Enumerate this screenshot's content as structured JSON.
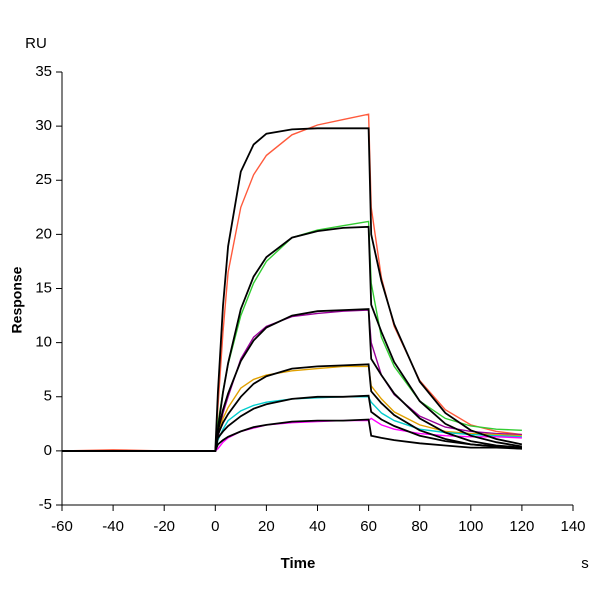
{
  "chart_data": {
    "type": "line",
    "y_unit": "RU",
    "ylabel": "Response",
    "xlabel": "Time",
    "x_unit": "s",
    "xlim": [
      -60,
      140
    ],
    "xticks": [
      -60,
      -40,
      -20,
      0,
      20,
      40,
      60,
      80,
      100,
      120,
      140
    ],
    "ylim": [
      -5,
      35
    ],
    "yticks": [
      -5,
      0,
      5,
      10,
      15,
      20,
      25,
      30,
      35
    ],
    "x": [
      -60,
      -40,
      -20,
      0,
      1,
      3,
      5,
      10,
      15,
      20,
      30,
      40,
      50,
      60,
      61,
      65,
      70,
      80,
      90,
      100,
      110,
      120
    ],
    "series": [
      {
        "color": "#ff5a3c",
        "values": [
          0,
          0.1,
          0,
          0,
          4,
          11,
          16.5,
          22.5,
          25.5,
          27.3,
          29.2,
          30.1,
          30.6,
          31.1,
          22.5,
          16,
          11.5,
          6.5,
          3.8,
          2.4,
          1.8,
          1.5
        ]
      },
      {
        "color": "#33cc33",
        "values": [
          0,
          0,
          0,
          0,
          2.5,
          5.5,
          8,
          12.5,
          15.5,
          17.5,
          19.7,
          20.4,
          20.8,
          21.2,
          15.5,
          10.5,
          7.8,
          4.6,
          3,
          2.3,
          2.0,
          1.9
        ]
      },
      {
        "color": "#990099",
        "values": [
          0,
          0,
          0,
          0,
          1.2,
          3.5,
          5,
          8.5,
          10.5,
          11.5,
          12.4,
          12.7,
          12.9,
          13.0,
          10,
          7,
          5.2,
          3.2,
          2.2,
          1.8,
          1.6,
          1.5
        ]
      },
      {
        "color": "#e0a000",
        "values": [
          0,
          0,
          0,
          0,
          1.5,
          3,
          4,
          5.8,
          6.6,
          7.0,
          7.4,
          7.6,
          7.8,
          7.8,
          6,
          4.8,
          3.6,
          2.4,
          1.8,
          1.6,
          1.5,
          1.4
        ]
      },
      {
        "color": "#00cccc",
        "values": [
          0,
          0,
          0,
          0,
          1.0,
          2,
          2.8,
          3.7,
          4.2,
          4.5,
          4.8,
          4.9,
          5.0,
          5.0,
          4.5,
          3.5,
          2.8,
          2.0,
          1.7,
          1.5,
          1.4,
          1.3
        ]
      },
      {
        "color": "#ff00ff",
        "values": [
          0,
          0,
          0,
          0,
          0.2,
          0.8,
          1.2,
          1.8,
          2.1,
          2.4,
          2.6,
          2.7,
          2.8,
          2.8,
          3.0,
          2.4,
          2.0,
          1.6,
          1.4,
          1.3,
          1.3,
          1.2
        ]
      },
      {
        "color": "#000000",
        "values": [
          0,
          0,
          0,
          0,
          5.4,
          13.4,
          18.9,
          25.8,
          28.3,
          29.3,
          29.7,
          29.8,
          29.8,
          29.8,
          20,
          15.7,
          11.7,
          6.4,
          3.5,
          1.9,
          1.1,
          0.6
        ]
      },
      {
        "color": "#000000",
        "values": [
          0,
          0,
          0,
          0,
          2.0,
          5.4,
          8.1,
          13.1,
          16.1,
          17.9,
          19.7,
          20.3,
          20.6,
          20.7,
          13.5,
          11,
          8.2,
          4.6,
          2.5,
          1.4,
          0.8,
          0.4
        ]
      },
      {
        "color": "#000000",
        "values": [
          0,
          0,
          0,
          0,
          1.8,
          3.8,
          5.3,
          8.3,
          10.2,
          11.4,
          12.5,
          12.9,
          13.0,
          13.1,
          8.5,
          7.0,
          5.3,
          3.0,
          1.7,
          0.9,
          0.5,
          0.3
        ]
      },
      {
        "color": "#000000",
        "values": [
          0,
          0,
          0,
          0,
          1.5,
          2.6,
          3.4,
          5.0,
          6.2,
          6.9,
          7.6,
          7.8,
          7.9,
          8.0,
          5.5,
          4.4,
          3.3,
          1.9,
          1.1,
          0.6,
          0.4,
          0.2
        ]
      },
      {
        "color": "#000000",
        "values": [
          0,
          0,
          0,
          0,
          1.2,
          1.8,
          2.3,
          3.2,
          3.9,
          4.3,
          4.8,
          5.0,
          5.0,
          5.1,
          3.6,
          2.9,
          2.3,
          1.4,
          0.9,
          0.6,
          0.4,
          0.3
        ]
      },
      {
        "color": "#000000",
        "values": [
          0,
          0,
          0,
          0,
          0.6,
          1.0,
          1.3,
          1.8,
          2.2,
          2.4,
          2.7,
          2.8,
          2.8,
          2.9,
          1.4,
          1.2,
          1.0,
          0.7,
          0.5,
          0.3,
          0.3,
          0.2
        ]
      }
    ]
  }
}
